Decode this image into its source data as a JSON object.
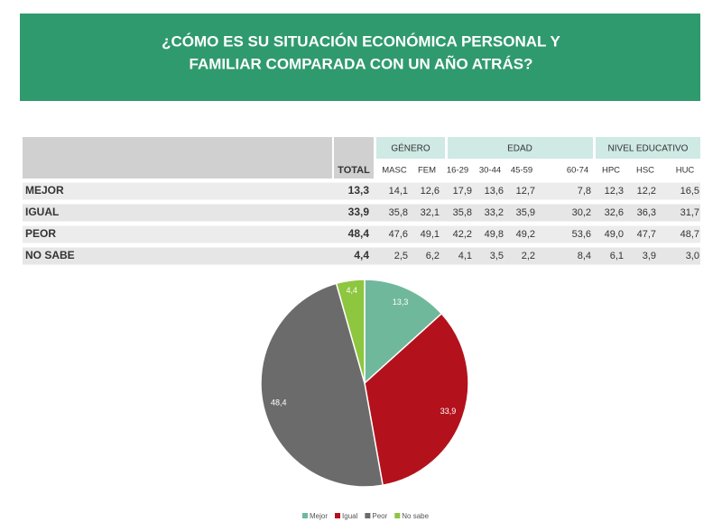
{
  "header": {
    "title_lines": [
      "¿CÓMO ES SU SITUACIÓN ECONÓMICA PERSONAL Y",
      "FAMILIAR COMPARADA CON UN AÑO ATRÁS?"
    ]
  },
  "table": {
    "groups": [
      "GÉNERO",
      "EDAD",
      "NIVEL EDUCATIVO"
    ],
    "columns": [
      "TOTAL",
      "MASC",
      "FEM",
      "16-29",
      "30-44",
      "45-59",
      "60-74",
      "HPC",
      "HSC",
      "HUC"
    ],
    "rows": [
      [
        "MEJOR",
        "13,3",
        "14,1",
        "12,6",
        "17,9",
        "13,6",
        "12,7",
        "7,8",
        "12,3",
        "12,2",
        "16,5"
      ],
      [
        "IGUAL",
        "33,9",
        "35,8",
        "32,1",
        "35,8",
        "33,2",
        "35,9",
        "30,2",
        "32,6",
        "36,3",
        "31,7"
      ],
      [
        "PEOR",
        "48,4",
        "47,6",
        "49,1",
        "42,2",
        "49,8",
        "49,2",
        "53,6",
        "49,0",
        "47,7",
        "48,7"
      ],
      [
        "NO SABE",
        "4,4",
        "2,5",
        "6,2",
        "4,1",
        "3,5",
        "2,2",
        "8,4",
        "6,1",
        "3,9",
        "3,0"
      ]
    ]
  },
  "chart_data": {
    "type": "pie",
    "categories": [
      "Mejor",
      "Igual",
      "Peor",
      "No sabe"
    ],
    "values": [
      13.3,
      33.9,
      48.4,
      4.4
    ],
    "value_labels": [
      "13,3",
      "33,9",
      "48,4",
      "4,4"
    ],
    "colors": [
      "#6fb89c",
      "#b3121c",
      "#6b6b6b",
      "#8dc63f"
    ],
    "legend": "bottom"
  }
}
